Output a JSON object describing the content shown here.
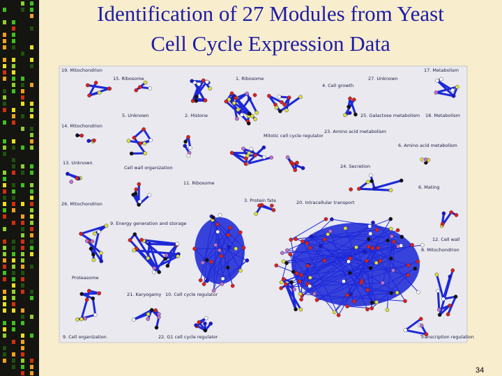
{
  "title": {
    "line1": "Identification of 27 Modules from Yeast",
    "line2": "Cell Cycle Expression Data"
  },
  "figure": {
    "modules": [
      "19. Mitochondrion",
      "15. Ribosome",
      "1. Ribosome",
      "4. Cell growth",
      "27. Unknown",
      "17. Metabolism",
      "5. Unknown",
      "2. Histone",
      "25. Galactose metabolism",
      "18. Metabolism",
      "14. Mitochondrion",
      "Mitotic cell cycle regulator",
      "23. Amino acid metabolism",
      "6. Amino acid metabolism",
      "13. Unknown",
      "Cell wall organization",
      "24. Secretion",
      "11. Ribosome",
      "6. Mating",
      "26. Mitochondrion",
      "3. Protein fate",
      "20. Intracellular transport",
      "9. Energy generation and storage",
      "12. Cell wall",
      "8. Mitochondrion",
      "Proteasome",
      "21. Karyogamy",
      "10. Cell cycle regulator",
      "9. Cell organization",
      "22. G1 cell cycle regulator",
      "Transcription regulation"
    ]
  },
  "page_number": "34"
}
